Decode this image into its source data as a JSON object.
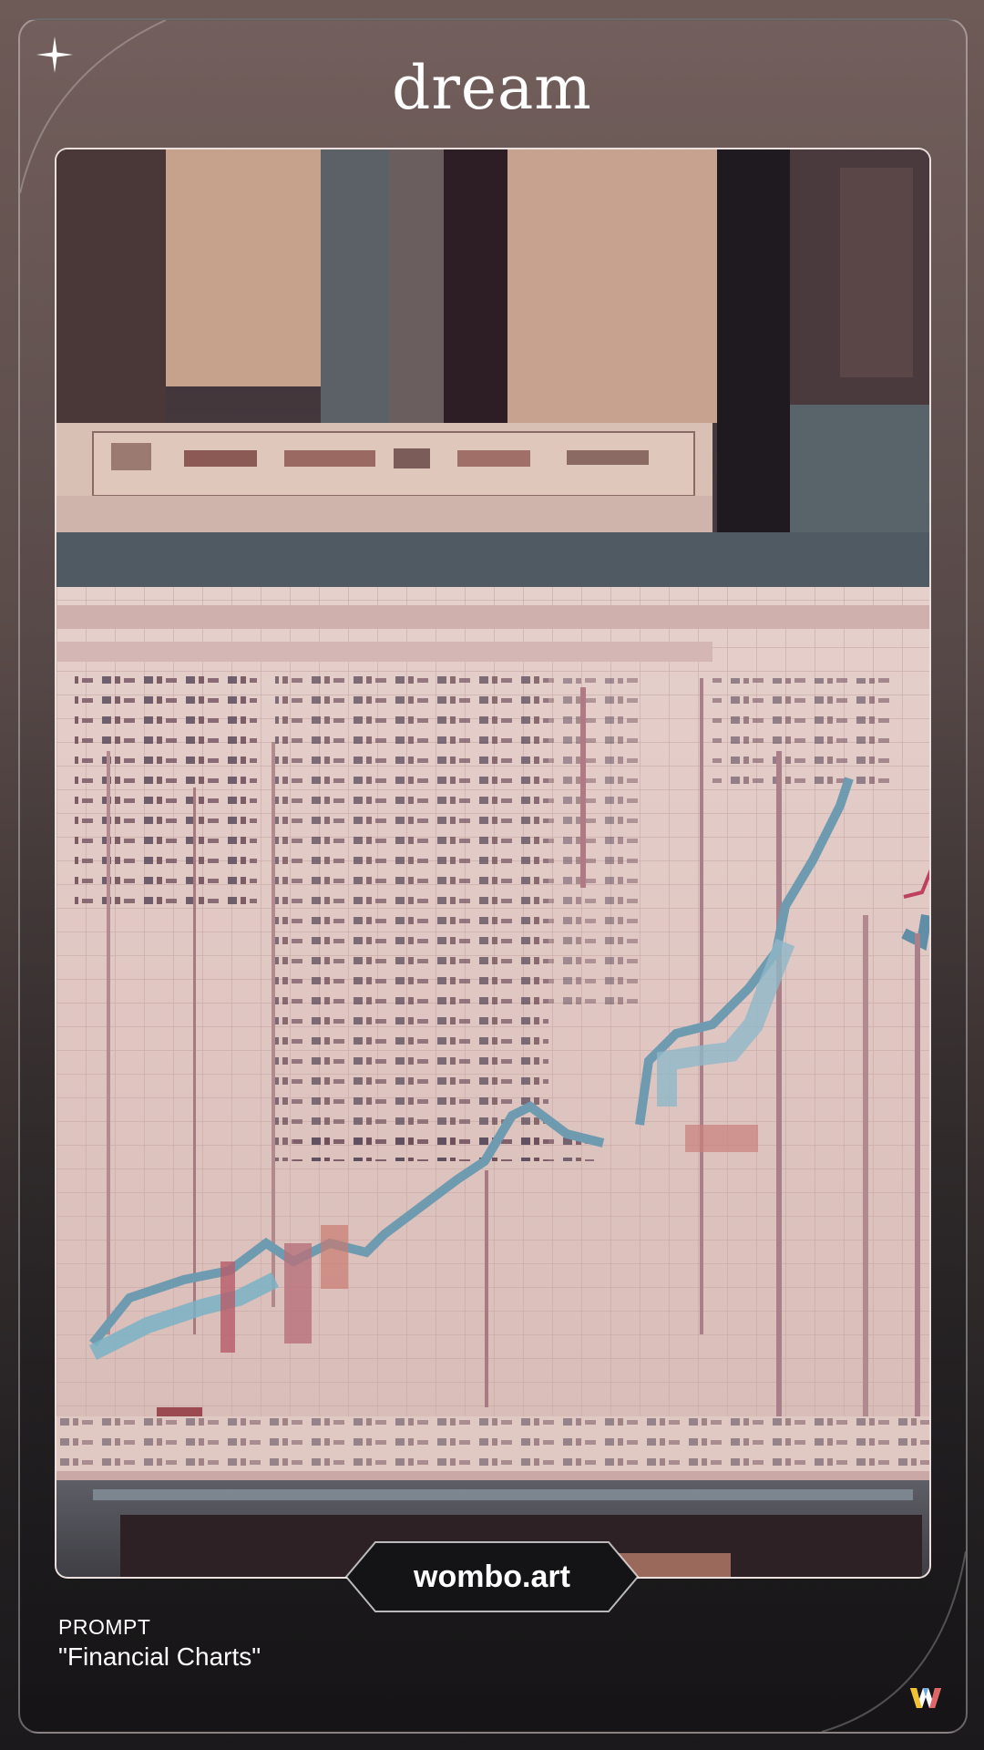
{
  "header": {
    "title": "dream",
    "sparkle_icon": "sparkle-icon"
  },
  "artwork": {
    "description_icon": "generated-artwork-image"
  },
  "badge": {
    "label": "wombo.art"
  },
  "prompt": {
    "label": "PROMPT",
    "text": "\"Financial Charts\""
  },
  "brand": {
    "logo_icon": "wombo-w-logo-icon"
  }
}
